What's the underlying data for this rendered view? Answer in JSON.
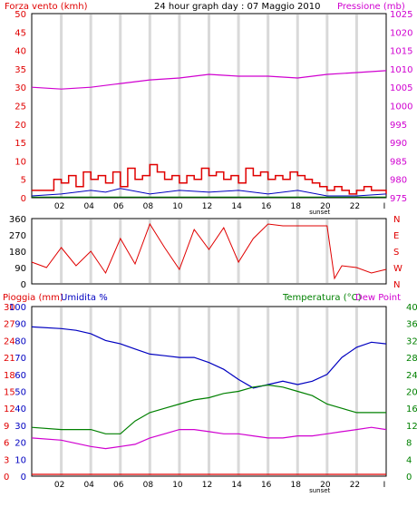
{
  "colors": {
    "background": "#ffffff",
    "frame": "#000000",
    "grid": "#d9d9d9",
    "wind": "#e00000",
    "gust_green": "#008000",
    "avg_wind_blue": "#0000c0",
    "pressure": "#d000d0",
    "direction": "#e00000",
    "rain": "#e00000",
    "humidity": "#0000c0",
    "temperature": "#008000",
    "dew_point": "#d000d0"
  },
  "chart_data": [
    {
      "type": "line",
      "panel": "wind-pressure",
      "title": "24 hour graph day : 07 Maggio 2010",
      "left_label": "Forza vento (kmh)",
      "right_label": "Pressione (mb)",
      "x_ticks": [
        "02",
        "04",
        "06",
        "08",
        "10",
        "12",
        "14",
        "16",
        "18",
        "20",
        "22",
        "I"
      ],
      "sunset_label": "sunset",
      "y_left_ticks": [
        "0",
        "5",
        "10",
        "15",
        "20",
        "25",
        "30",
        "35",
        "40",
        "45",
        "50"
      ],
      "y_left_range": [
        0,
        50
      ],
      "y_right_ticks": [
        "975",
        "980",
        "985",
        "990",
        "995",
        "1000",
        "1005",
        "1010",
        "1015",
        "1020",
        "1025"
      ],
      "y_right_range": [
        975,
        1025
      ],
      "series": [
        {
          "name": "Pressione",
          "x": [
            0,
            2,
            4,
            6,
            8,
            10,
            12,
            14,
            16,
            18,
            20,
            22,
            24
          ],
          "values": [
            1005,
            1004.5,
            1005,
            1006,
            1007,
            1007.5,
            1008.5,
            1008,
            1008,
            1007.5,
            1008.5,
            1009,
            1009.5
          ]
        }
      ],
      "wind_gust_kmh": [
        {
          "x": [
            0,
            1,
            1.5,
            2,
            2.5,
            3,
            3.5,
            4,
            4.5,
            5,
            5.5,
            6,
            6.5,
            7,
            7.5,
            8,
            8.5,
            9,
            9.5,
            10,
            10.5,
            11,
            11.5,
            12,
            12.5,
            13,
            13.5,
            14,
            14.5,
            15,
            15.5,
            16,
            16.5,
            17,
            17.5,
            18,
            18.5,
            19,
            19.5,
            20,
            20.5,
            21,
            21.5,
            22,
            22.5,
            23,
            23.5,
            24
          ],
          "values": [
            2,
            2,
            5,
            4,
            6,
            3,
            7,
            5,
            6,
            4,
            7,
            3,
            8,
            5,
            6,
            9,
            7,
            5,
            6,
            4,
            6,
            5,
            8,
            6,
            7,
            5,
            6,
            4,
            8,
            6,
            7,
            5,
            6,
            5,
            7,
            6,
            5,
            4,
            3,
            2,
            3,
            2,
            1,
            2,
            3,
            2,
            2,
            1
          ]
        }
      ],
      "wind_avg_kmh": {
        "x": [
          0,
          2,
          4,
          5,
          6,
          8,
          10,
          12,
          14,
          16,
          18,
          20,
          22,
          24
        ],
        "values": [
          0.5,
          1,
          2,
          1.5,
          2.5,
          1,
          2,
          1.5,
          2,
          1,
          2,
          0.5,
          0.5,
          1
        ]
      }
    },
    {
      "type": "line",
      "panel": "wind-direction",
      "y_left_ticks": [
        "0",
        "90",
        "180",
        "270",
        "360"
      ],
      "y_left_range": [
        0,
        360
      ],
      "y_right_ticks": [
        "N",
        "W",
        "S",
        "E",
        "N"
      ],
      "series": [
        {
          "name": "Direzione",
          "x": [
            0,
            1,
            2,
            3,
            4,
            5,
            6,
            7,
            8,
            9,
            10,
            11,
            12,
            13,
            14,
            15,
            16,
            17,
            18,
            19,
            20,
            20.5,
            21,
            22,
            23,
            24
          ],
          "values": [
            120,
            90,
            200,
            100,
            180,
            60,
            250,
            110,
            330,
            200,
            80,
            300,
            190,
            310,
            120,
            250,
            330,
            320,
            320,
            320,
            320,
            30,
            100,
            90,
            60,
            80
          ]
        }
      ]
    },
    {
      "type": "line",
      "panel": "rain-humidity-temperature",
      "left_label_rain": "Pioggia (mm)",
      "left_label_humidity": "Umidita %",
      "right_label_temperature": "Temperatura (°C)",
      "right_label_dew": "Dew Point",
      "y_left_outer_ticks": [
        "0",
        "3",
        "6",
        "9",
        "12",
        "15",
        "18",
        "21",
        "24",
        "27",
        "30"
      ],
      "y_left_inner_ticks": [
        "0",
        "10",
        "20",
        "30",
        "40",
        "50",
        "60",
        "70",
        "80",
        "90",
        "100"
      ],
      "y_left_range": [
        0,
        100
      ],
      "y_right_ticks": [
        "0",
        "4",
        "8",
        "12",
        "16",
        "20",
        "24",
        "28",
        "32",
        "36",
        "40"
      ],
      "y_right_range": [
        0,
        40
      ],
      "series": [
        {
          "name": "Umidita %",
          "x": [
            0,
            2,
            3,
            4,
            5,
            6,
            7,
            8,
            9,
            10,
            11,
            12,
            13,
            14,
            15,
            16,
            17,
            18,
            19,
            20,
            21,
            22,
            23,
            24
          ],
          "values": [
            88,
            87,
            86,
            84,
            80,
            78,
            75,
            72,
            71,
            70,
            70,
            67,
            63,
            57,
            52,
            54,
            56,
            54,
            56,
            60,
            70,
            76,
            79,
            78
          ]
        },
        {
          "name": "Temperatura (°C)",
          "x": [
            0,
            2,
            4,
            5,
            6,
            7,
            8,
            9,
            10,
            11,
            12,
            13,
            14,
            15,
            16,
            17,
            18,
            19,
            20,
            21,
            22,
            23,
            24
          ],
          "values": [
            11.5,
            11,
            11,
            10,
            10,
            13,
            15,
            16,
            17,
            18,
            18.5,
            19.5,
            20,
            21,
            21.5,
            21,
            20,
            19,
            17,
            16,
            15,
            15,
            15
          ]
        },
        {
          "name": "Dew Point",
          "x": [
            0,
            2,
            4,
            5,
            6,
            7,
            8,
            9,
            10,
            11,
            12,
            13,
            14,
            15,
            16,
            17,
            18,
            19,
            20,
            21,
            22,
            23,
            24
          ],
          "values": [
            9,
            8.5,
            7,
            6.5,
            7,
            7.5,
            9,
            10,
            11,
            11,
            10.5,
            10,
            10,
            9.5,
            9,
            9,
            9.5,
            9.5,
            10,
            10.5,
            11,
            11.5,
            11
          ]
        },
        {
          "name": "Pioggia (mm)",
          "x": [
            0,
            24
          ],
          "values": [
            0,
            0
          ]
        }
      ]
    }
  ]
}
